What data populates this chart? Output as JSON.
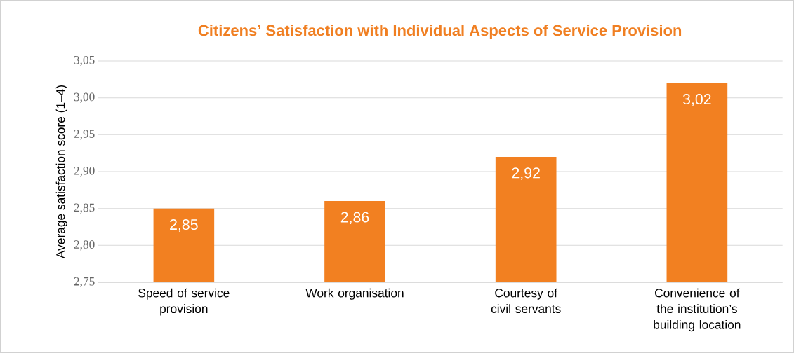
{
  "chart_data": {
    "type": "bar",
    "title": "Citizens’ Satisfaction with Individual Aspects of Service Provision",
    "ylabel": "Average satisfaction score (1–4)",
    "categories": [
      "Speed of service provision",
      "Work organisation",
      "Courtesy of civil servants",
      "Convenience of the institution’s building location"
    ],
    "values": [
      2.85,
      2.86,
      2.92,
      3.02
    ],
    "value_labels": [
      "2,85",
      "2,86",
      "2,92",
      "3,02"
    ],
    "color": "#f28021",
    "ylim": [
      2.75,
      3.05
    ],
    "yticks": [
      {
        "value": 2.75,
        "label": "2,75"
      },
      {
        "value": 2.8,
        "label": "2,80"
      },
      {
        "value": 2.85,
        "label": "2,85"
      },
      {
        "value": 2.9,
        "label": "2,90"
      },
      {
        "value": 2.95,
        "label": "2,95"
      },
      {
        "value": 3.0,
        "label": "3,00"
      },
      {
        "value": 3.05,
        "label": "3,05"
      }
    ],
    "grid": "y"
  }
}
